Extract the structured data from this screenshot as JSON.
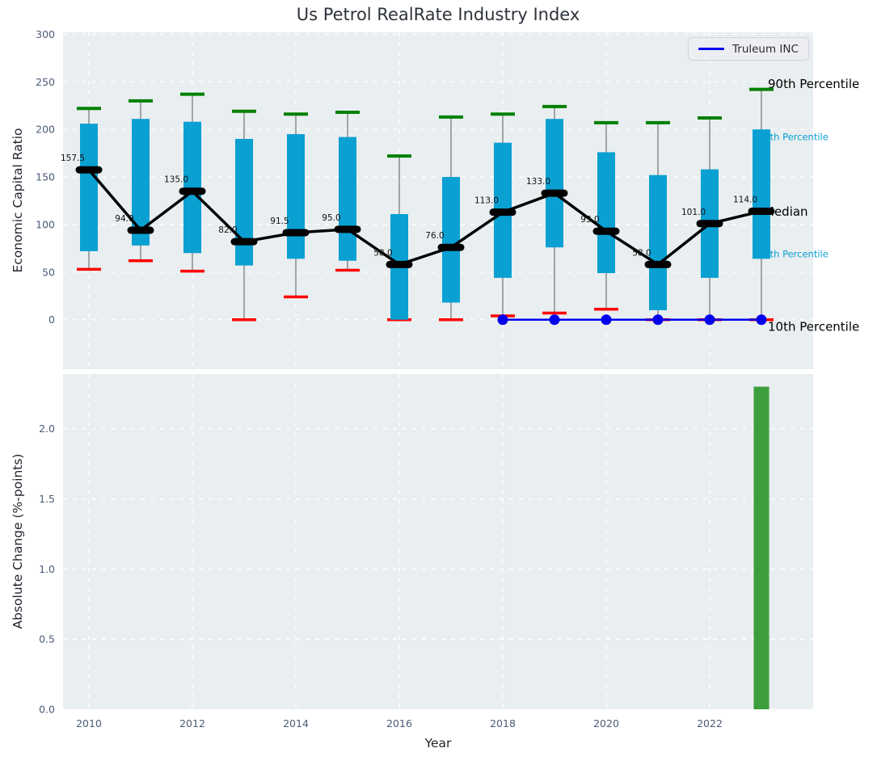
{
  "chart_data": [
    {
      "type": "boxplot",
      "title": "Us Petrol RealRate Industry Index",
      "ylabel": "Economic Capital Ratio",
      "ylim": [
        -52,
        302
      ],
      "yticks": [
        0,
        50,
        100,
        150,
        200,
        250,
        300
      ],
      "xlim": [
        2009.5,
        2024.0
      ],
      "xticks": [
        2010,
        2012,
        2014,
        2016,
        2018,
        2020,
        2022
      ],
      "grid": true,
      "legend_position": "upper right",
      "years": [
        2010,
        2011,
        2012,
        2013,
        2014,
        2015,
        2016,
        2017,
        2018,
        2019,
        2020,
        2021,
        2022,
        2023
      ],
      "series": [
        {
          "name": "90th Percentile",
          "values": [
            222,
            230,
            237,
            219,
            216,
            218,
            172,
            213,
            216,
            224,
            207,
            207,
            212,
            242
          ]
        },
        {
          "name": "75th Percentile",
          "values": [
            206,
            211,
            208,
            190,
            195,
            192,
            111,
            150,
            186,
            211,
            176,
            152,
            158,
            200
          ]
        },
        {
          "name": "Median",
          "values": [
            157.5,
            94,
            135,
            82,
            91.5,
            95,
            58,
            76,
            113,
            133,
            93,
            58,
            101,
            114
          ]
        },
        {
          "name": "25th Percentile",
          "values": [
            72,
            78,
            70,
            57,
            64,
            62,
            0,
            18,
            44,
            76,
            49,
            10,
            44,
            64
          ]
        },
        {
          "name": "10th Percentile",
          "values": [
            53,
            62,
            51,
            0,
            24,
            52,
            0,
            0,
            4,
            7,
            11,
            0,
            0,
            0
          ]
        }
      ],
      "median_labels": [
        "157.5",
        "94.0",
        "135.0",
        "82.0",
        "91.5",
        "95.0",
        "58.0",
        "76.0",
        "113.0",
        "133.0",
        "93.0",
        "58.0",
        "101.0",
        "114.0"
      ],
      "right_annotations": [
        {
          "text": "90th Percentile",
          "value": 248,
          "dx": 8,
          "color": "#000000",
          "size": 15
        },
        {
          "text": "75th Percentile",
          "value": 192,
          "dx": -4,
          "color": "#0aa0d2",
          "size": 11.5
        },
        {
          "text": "Median",
          "value": 114,
          "dx": 3,
          "color": "#000000",
          "size": 15
        },
        {
          "text": "25th Percentile",
          "value": 69,
          "dx": -4,
          "color": "#0aa0d2",
          "size": 11.5
        },
        {
          "text": "10th Percentile",
          "value": -7,
          "dx": 8,
          "color": "#000000",
          "size": 15
        }
      ],
      "company_line": {
        "name": "Truleum INC",
        "years": [
          2018,
          2019,
          2020,
          2021,
          2022,
          2023
        ],
        "values": [
          0,
          0,
          0,
          0,
          0,
          0
        ]
      },
      "colors": {
        "box": "#0aa0d2",
        "p90_cap": "#008000",
        "p10_cap": "#ff0000",
        "whisker": "#8a8a8a",
        "median": "#000000",
        "company": "#0000ee",
        "plot_bg": "#e9eef0",
        "grid": "#ffffff",
        "tick": "#4b5b76",
        "text": "#22262e"
      }
    },
    {
      "type": "bar",
      "ylabel": "Absolute Change (%-points)",
      "xlabel": "Year",
      "ylim": [
        0,
        2.39
      ],
      "yticks": [
        "0.0",
        "0.5",
        "1.0",
        "1.5",
        "2.0"
      ],
      "xlim": [
        2009.5,
        2024.0
      ],
      "xticks": [
        2010,
        2012,
        2014,
        2016,
        2018,
        2020,
        2022
      ],
      "grid": true,
      "bars": [
        {
          "x": 2023,
          "value": 2.3
        }
      ],
      "bar_color": "#3c9e3d"
    }
  ]
}
